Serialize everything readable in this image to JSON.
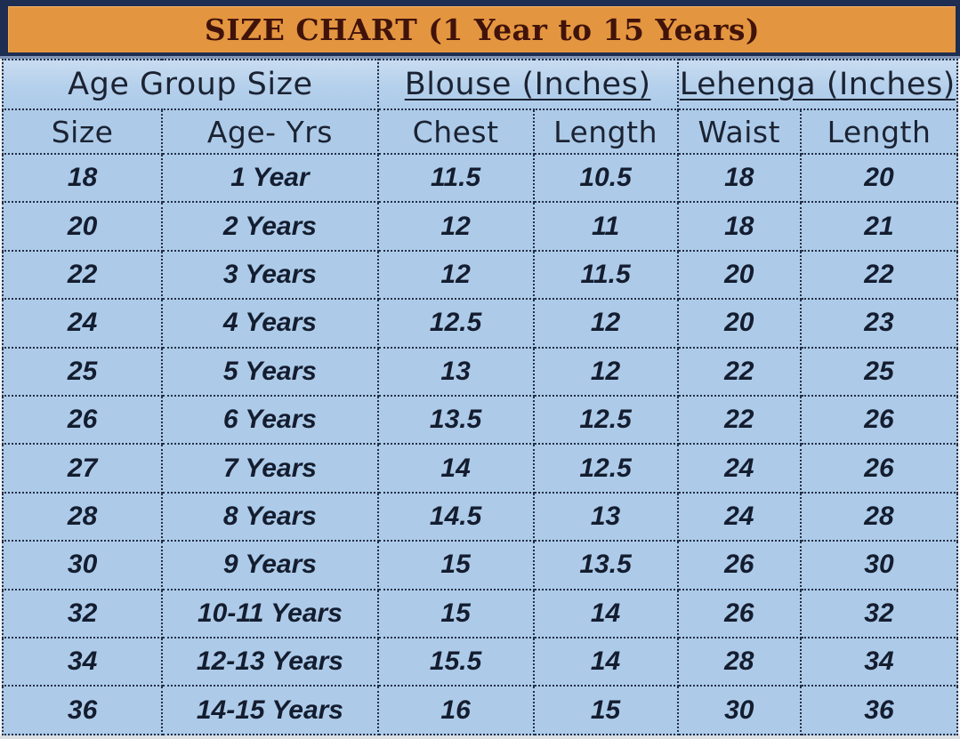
{
  "title": "SIZE CHART (1 Year to 15 Years)",
  "colors": {
    "title_bar_bg": "#e4953f",
    "title_text": "#40130a",
    "frame_navy": "#1e2d52",
    "table_bg": "#adcbe9",
    "header_text": "#1b2333",
    "data_text": "#141d2f",
    "dotted_border": "#232e44"
  },
  "chart_data": {
    "type": "table",
    "title": "SIZE CHART (1 Year to 15 Years)",
    "group_headers": [
      {
        "label": "Age Group Size",
        "span": 2,
        "underline": false
      },
      {
        "label": "Blouse (Inches)",
        "span": 2,
        "underline": true
      },
      {
        "label": "Lehenga (Inches)",
        "span": 2,
        "underline": true
      }
    ],
    "column_headers": [
      "Size",
      "Age- Yrs",
      "Chest",
      "Length",
      "Waist",
      "Length"
    ],
    "rows": [
      [
        "18",
        "1 Year",
        "11.5",
        "10.5",
        "18",
        "20"
      ],
      [
        "20",
        "2 Years",
        "12",
        "11",
        "18",
        "21"
      ],
      [
        "22",
        "3 Years",
        "12",
        "11.5",
        "20",
        "22"
      ],
      [
        "24",
        "4 Years",
        "12.5",
        "12",
        "20",
        "23"
      ],
      [
        "25",
        "5 Years",
        "13",
        "12",
        "22",
        "25"
      ],
      [
        "26",
        "6 Years",
        "13.5",
        "12.5",
        "22",
        "26"
      ],
      [
        "27",
        "7 Years",
        "14",
        "12.5",
        "24",
        "26"
      ],
      [
        "28",
        "8 Years",
        "14.5",
        "13",
        "24",
        "28"
      ],
      [
        "30",
        "9 Years",
        "15",
        "13.5",
        "26",
        "30"
      ],
      [
        "32",
        "10-11 Years",
        "15",
        "14",
        "26",
        "32"
      ],
      [
        "34",
        "12-13 Years",
        "15.5",
        "14",
        "28",
        "34"
      ],
      [
        "36",
        "14-15 Years",
        "16",
        "15",
        "30",
        "36"
      ]
    ]
  }
}
